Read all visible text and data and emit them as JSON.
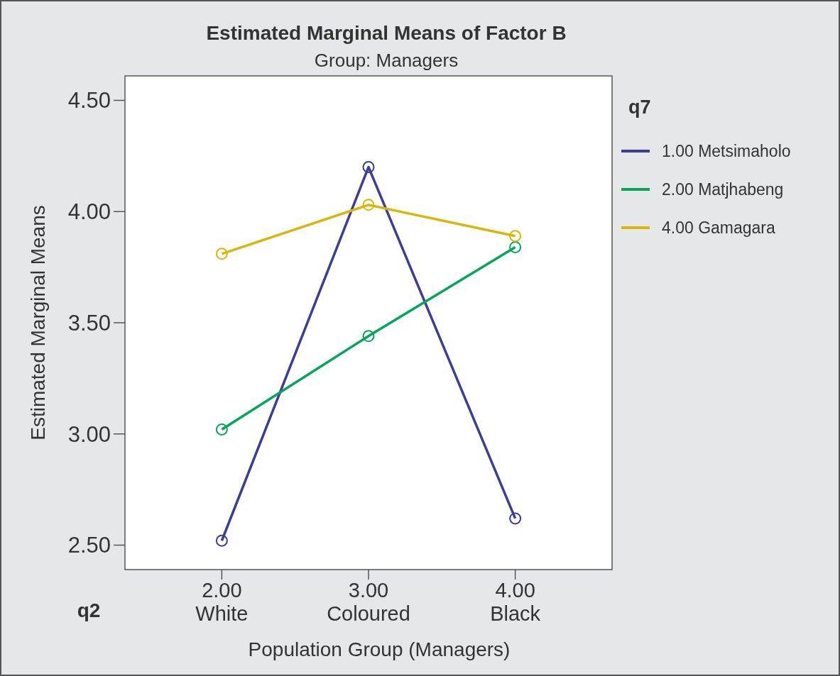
{
  "chart_data": {
    "type": "line",
    "title": "Estimated Marginal Means of Factor B",
    "subtitle": "Group:  Managers",
    "xlabel": "Population Group (Managers)",
    "ylabel": "Estimated Marginal Means",
    "legend_title": "q7",
    "annotations": [
      "q2"
    ],
    "categories": [
      "2.00\nWhite",
      "3.00\nColoured",
      "4.00\nBlack"
    ],
    "series": [
      {
        "name": "1.00 Metsimaholo",
        "color": "#3d3d99",
        "values": [
          2.52,
          4.2,
          2.62
        ]
      },
      {
        "name": "2.00 Matjhabeng",
        "color": "#00a85a",
        "values": [
          3.02,
          3.44,
          3.84
        ]
      },
      {
        "name": "4.00 Gamagara",
        "color": "#d8b800",
        "values": [
          3.81,
          4.03,
          3.89
        ]
      }
    ],
    "ylim": [
      2.39,
      4.61
    ],
    "yticks": [
      {
        "value": 2.5,
        "label": "2.50"
      },
      {
        "value": 3,
        "label": "3.00"
      },
      {
        "value": 3.5,
        "label": "3.50"
      },
      {
        "value": 4,
        "label": "4.00"
      },
      {
        "value": 4.5,
        "label": "4.50"
      }
    ],
    "marker": "circle",
    "line_style": "solid",
    "legend": "right",
    "grid": false
  }
}
